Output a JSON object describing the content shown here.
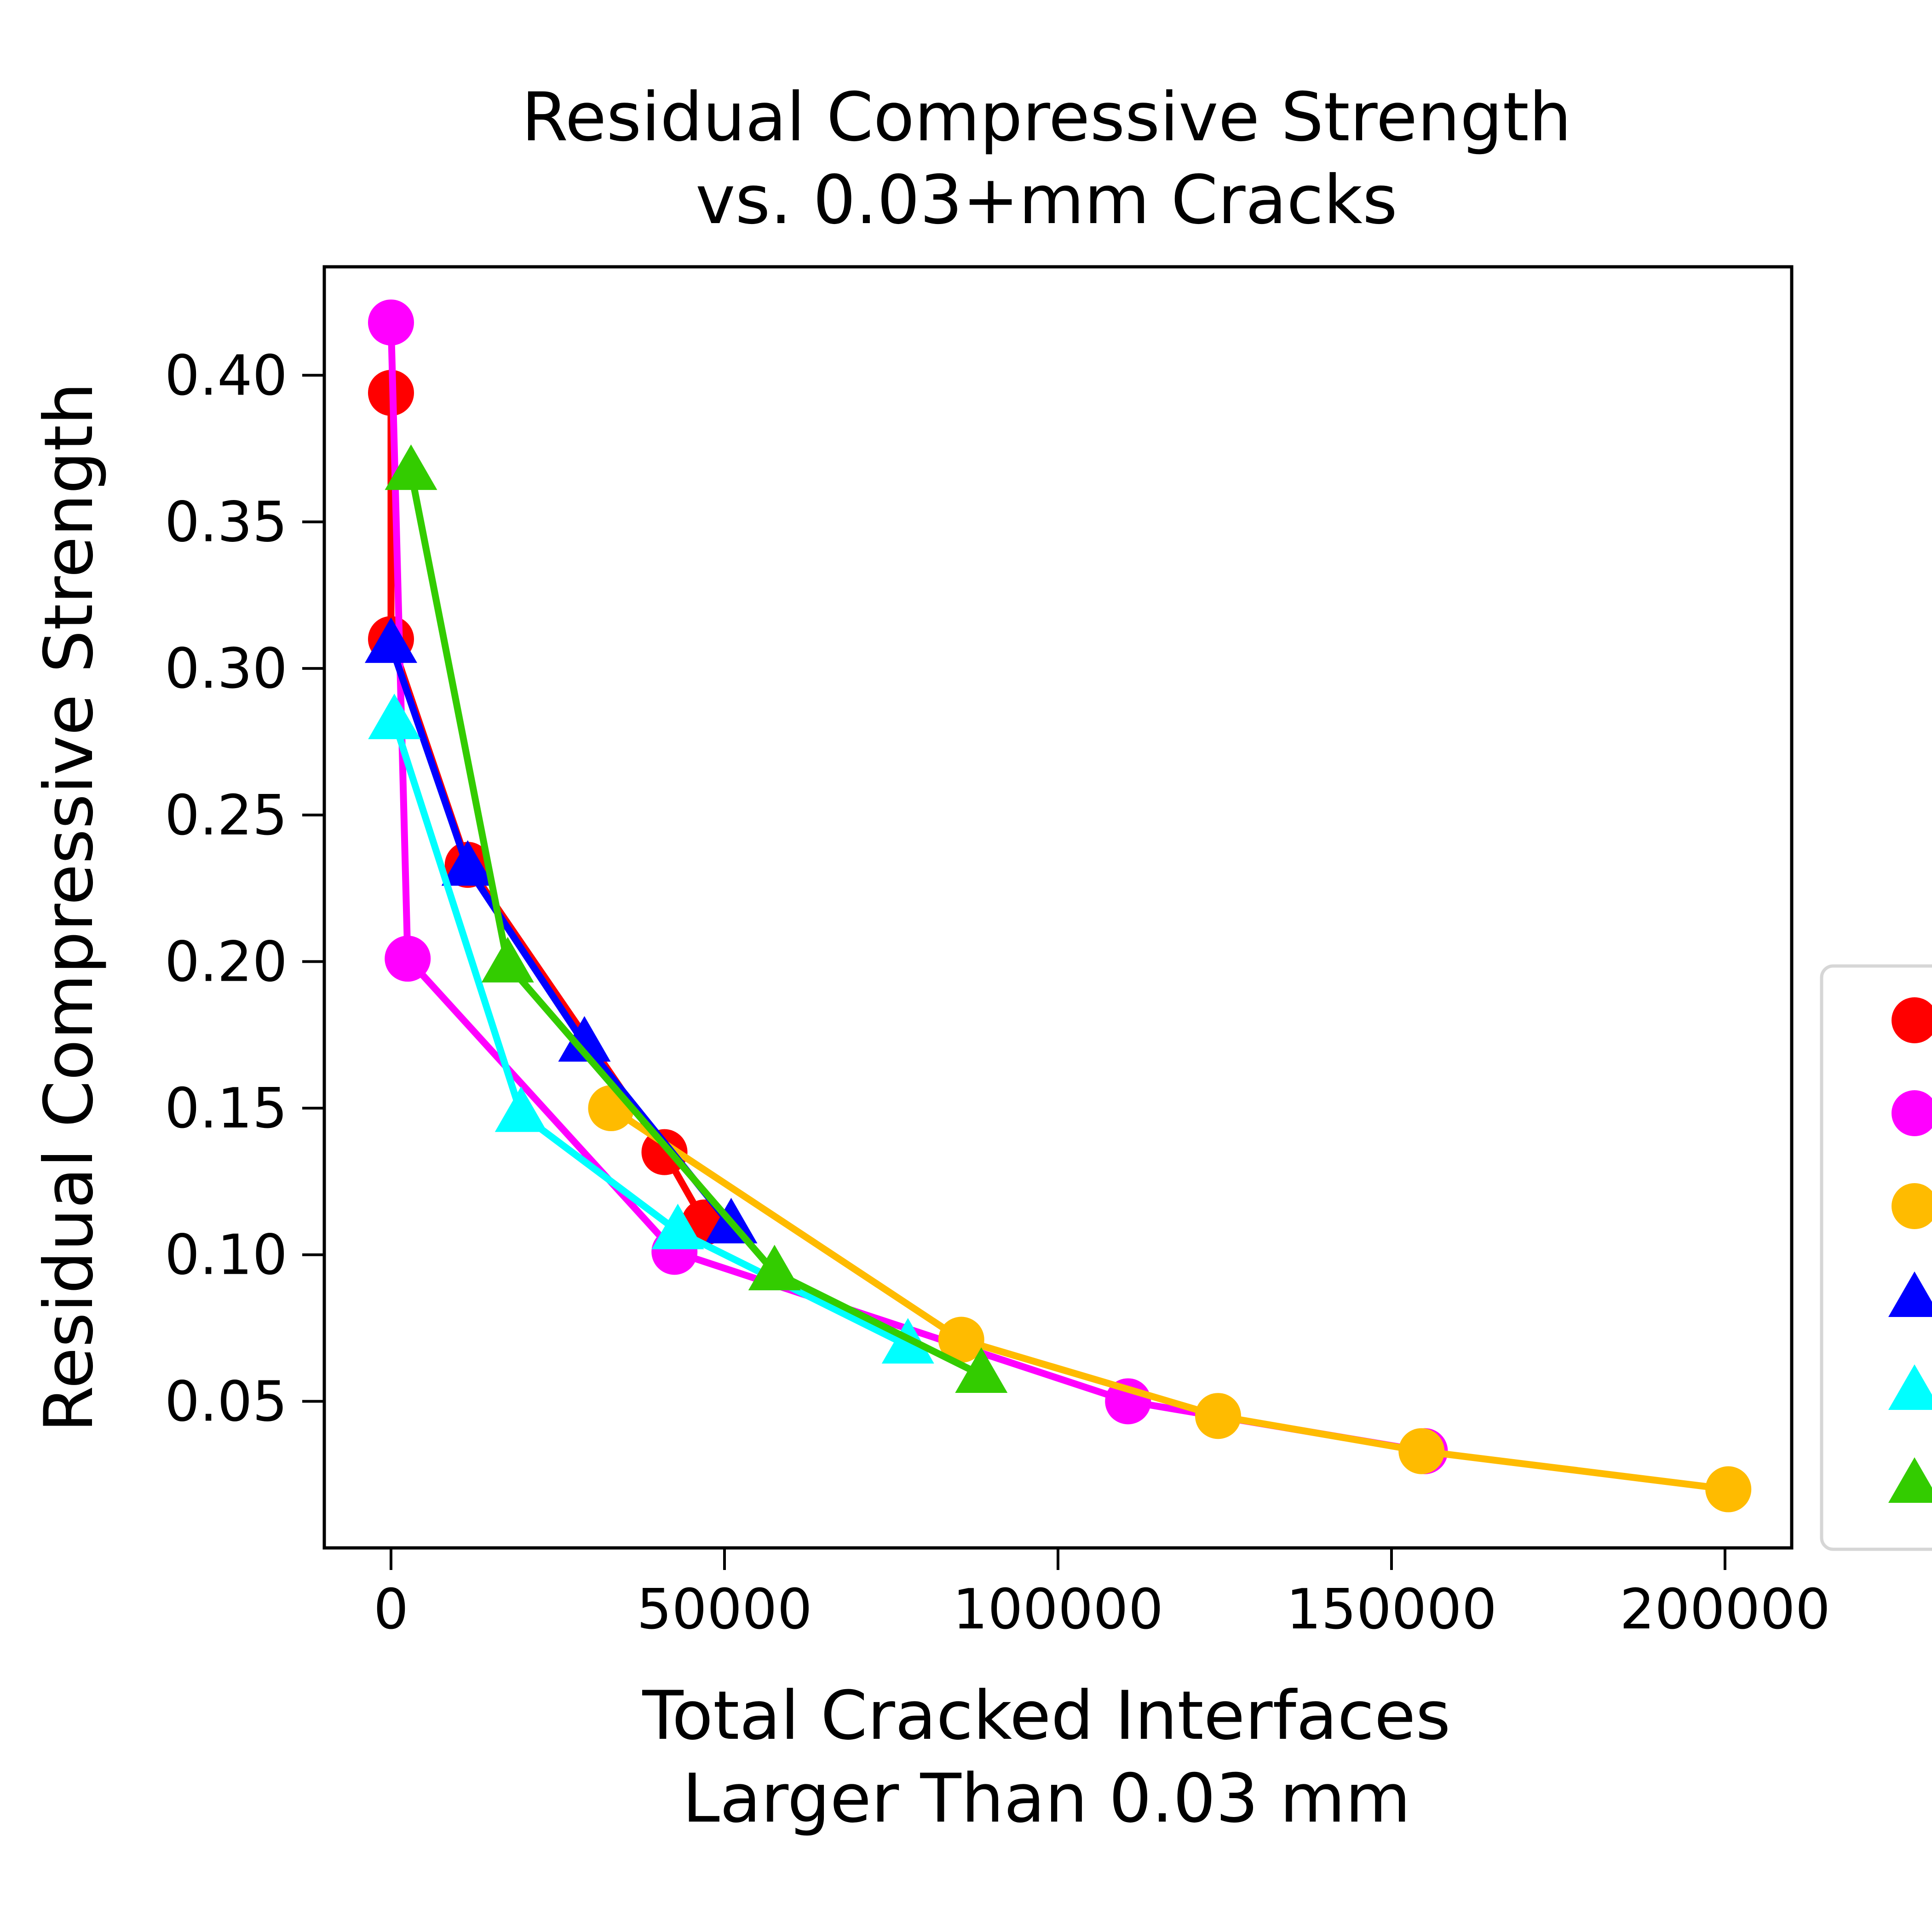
{
  "chart_data": {
    "type": "line",
    "title": "Residual Compressive Strength\nvs. 0.03+mm Cracks",
    "xlabel": "Total Cracked Interfaces\nLarger Than 0.03 mm",
    "ylabel": "Residual Compressive Strength",
    "xlim": [
      -10000,
      210000
    ],
    "ylim": [
      0.0,
      0.437
    ],
    "xticks": [
      0,
      50000,
      100000,
      150000,
      200000
    ],
    "xtick_labels": [
      "0",
      "50000",
      "100000",
      "150000",
      "200000"
    ],
    "yticks": [
      0.05,
      0.1,
      0.15,
      0.2,
      0.25,
      0.3,
      0.35,
      0.4
    ],
    "ytick_labels": [
      "0.05",
      "0.10",
      "0.15",
      "0.20",
      "0.25",
      "0.30",
      "0.35",
      "0.40"
    ],
    "grid": false,
    "legend": "right (cropped, markers only)",
    "series": [
      {
        "color": "#ff0000",
        "marker": "circle",
        "x": [
          0,
          0,
          11500,
          41000,
          47000
        ],
        "y": [
          0.394,
          0.31,
          0.233,
          0.135,
          0.111
        ]
      },
      {
        "color": "#ff00ff",
        "marker": "circle",
        "x": [
          0,
          2500,
          42500,
          110500,
          155000
        ],
        "y": [
          0.418,
          0.201,
          0.101,
          0.05,
          0.033
        ]
      },
      {
        "color": "#ffbb00",
        "marker": "circle",
        "x": [
          33000,
          85500,
          124000,
          154500,
          200500
        ],
        "y": [
          0.15,
          0.071,
          0.045,
          0.033,
          0.02
        ]
      },
      {
        "color": "#0000ff",
        "marker": "triangle",
        "x": [
          0,
          11500,
          29000,
          51000
        ],
        "y": [
          0.308,
          0.232,
          0.172,
          0.11
        ]
      },
      {
        "color": "#00ffff",
        "marker": "triangle",
        "x": [
          500,
          19500,
          43000,
          77500
        ],
        "y": [
          0.282,
          0.148,
          0.108,
          0.069
        ]
      },
      {
        "color": "#33cc00",
        "marker": "triangle",
        "x": [
          3000,
          17500,
          57500,
          88500
        ],
        "y": [
          0.367,
          0.199,
          0.094,
          0.059
        ]
      }
    ]
  }
}
